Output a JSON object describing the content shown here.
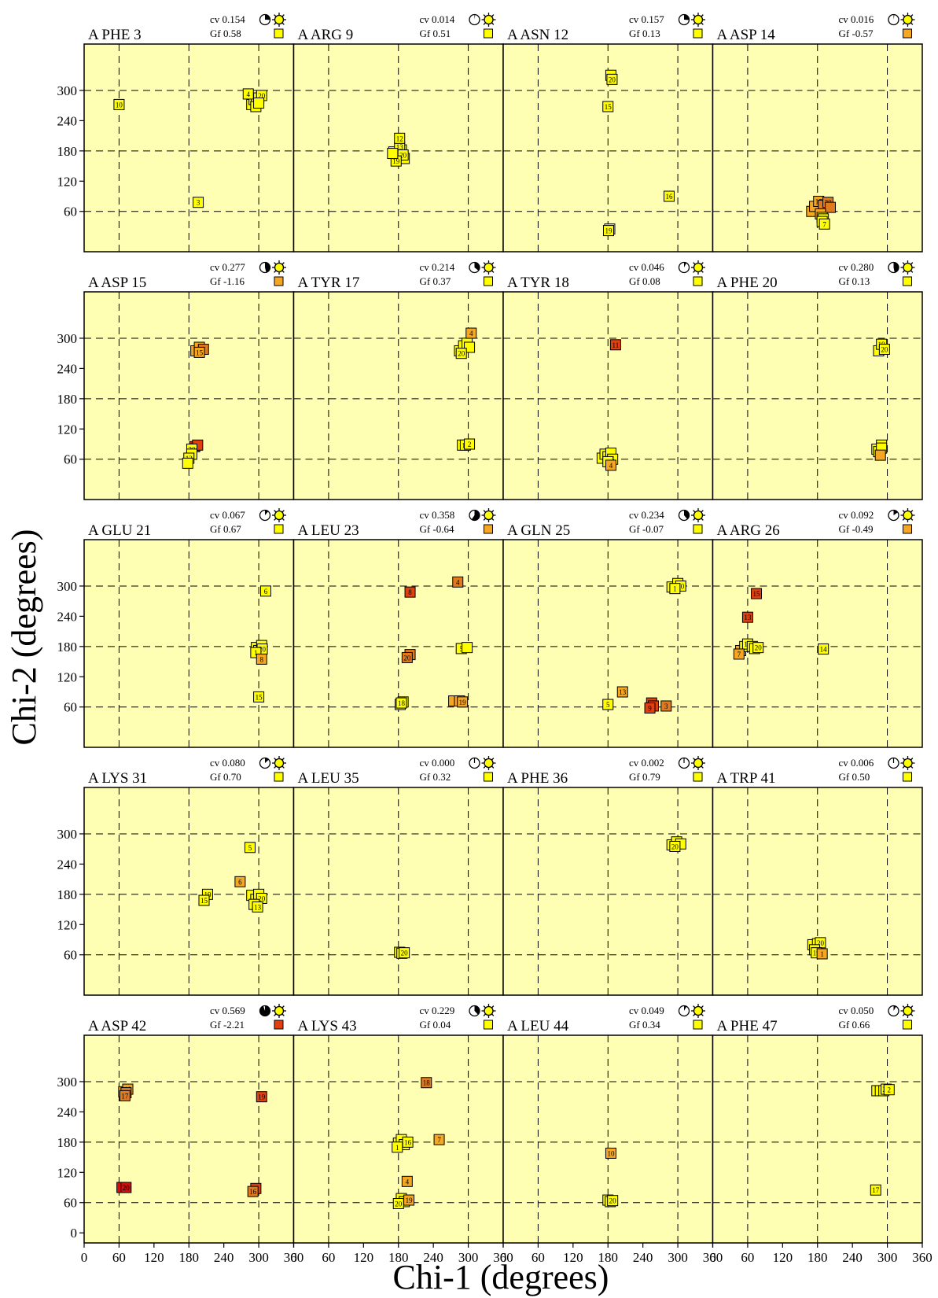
{
  "figure": {
    "ylabel": "Chi-2 (degrees)",
    "xlabel": "Chi-1 (degrees)",
    "cv_prefix": "cv",
    "gf_prefix": "Gf"
  },
  "chart_data": {
    "type": "scatter",
    "xlim": [
      0,
      360
    ],
    "ylim": [
      0,
      360
    ],
    "xticks": [
      0,
      60,
      120,
      180,
      240,
      300,
      360
    ],
    "yticks": [
      0,
      60,
      120,
      180,
      240,
      300
    ],
    "grid": true,
    "grid_lines": [
      60,
      180,
      300
    ],
    "colors": {
      "background": "#ffffb4",
      "yellow": "#ffff00",
      "orange": "#f5a623",
      "darkorange": "#e07a1f",
      "red": "#e04010",
      "darkred": "#d01010"
    },
    "panels": [
      {
        "title": "A PHE 3",
        "cv": "0.154",
        "gf": "0.58",
        "gf_color": "#ffff00",
        "pts": [
          [
            288,
            272,
            "",
            "#ffff00"
          ],
          [
            292,
            282,
            "",
            "#ffff00"
          ],
          [
            296,
            278,
            "",
            "#ffff00"
          ],
          [
            300,
            285,
            "",
            "#ffff00"
          ],
          [
            305,
            290,
            "20",
            "#ffff00"
          ],
          [
            295,
            268,
            "",
            "#ffff00"
          ],
          [
            300,
            275,
            "",
            "#ffff00"
          ],
          [
            282,
            293,
            "4",
            "#ffff00"
          ],
          [
            60,
            272,
            "10",
            "#ffff00"
          ],
          [
            196,
            78,
            "3",
            "#ffff00"
          ]
        ]
      },
      {
        "title": "A ARG 9",
        "cv": "0.014",
        "gf": "0.51",
        "gf_color": "#ffff00",
        "pts": [
          [
            172,
            178,
            "",
            "#ffff00"
          ],
          [
            178,
            170,
            "",
            "#ffff00"
          ],
          [
            185,
            182,
            "",
            "#ffff00"
          ],
          [
            190,
            165,
            "",
            "#ffff00"
          ],
          [
            182,
            188,
            "13",
            "#ffff00"
          ],
          [
            188,
            172,
            "20",
            "#ffff00"
          ],
          [
            182,
            205,
            "12",
            "#ffff00"
          ],
          [
            176,
            160,
            "19",
            "#ffff00"
          ],
          [
            170,
            175,
            "",
            "#ffff00"
          ]
        ]
      },
      {
        "title": "A ASN 12",
        "cv": "0.157",
        "gf": "0.13",
        "gf_color": "#ffff00",
        "pts": [
          [
            185,
            330,
            "",
            "#ffff00"
          ],
          [
            187,
            322,
            "20",
            "#ffff00"
          ],
          [
            180,
            268,
            "15",
            "#ffff00"
          ],
          [
            285,
            90,
            "16",
            "#ffff00"
          ],
          [
            183,
            25,
            "",
            "#ffff00"
          ],
          [
            181,
            22,
            "19",
            "#ffff00"
          ]
        ]
      },
      {
        "title": "A ASP 14",
        "cv": "0.016",
        "gf": "-0.57",
        "gf_color": "#f5a623",
        "pts": [
          [
            170,
            60,
            "",
            "#f5a623"
          ],
          [
            175,
            70,
            "",
            "#f5a623"
          ],
          [
            182,
            80,
            "17",
            "#f5a623"
          ],
          [
            190,
            72,
            "",
            "#e07a1f"
          ],
          [
            198,
            78,
            "20",
            "#e07a1f"
          ],
          [
            202,
            68,
            "",
            "#e07a1f"
          ],
          [
            185,
            55,
            "",
            "#f5a623"
          ],
          [
            188,
            48,
            "",
            "#ffff00"
          ],
          [
            190,
            45,
            "",
            "#ffff00"
          ],
          [
            188,
            40,
            "",
            "#ffff00"
          ],
          [
            192,
            35,
            "7",
            "#ffff00"
          ]
        ]
      },
      {
        "title": "A ASP 15",
        "cv": "0.277",
        "gf": "-1.16",
        "gf_color": "#f5a623",
        "pts": [
          [
            192,
            275,
            "",
            "#f5a623"
          ],
          [
            198,
            282,
            "",
            "#f5a623"
          ],
          [
            205,
            278,
            "",
            "#e07a1f"
          ],
          [
            198,
            272,
            "15",
            "#f5a623"
          ],
          [
            190,
            85,
            "",
            "#d01010"
          ],
          [
            195,
            88,
            "",
            "#e04010"
          ],
          [
            185,
            80,
            "20",
            "#ffff00"
          ],
          [
            185,
            70,
            "",
            "#ffff00"
          ],
          [
            180,
            62,
            "12",
            "#ffff00"
          ],
          [
            178,
            52,
            "",
            "#ffff00"
          ]
        ]
      },
      {
        "title": "A TYR 17",
        "cv": "0.214",
        "gf": "0.37",
        "gf_color": "#ffff00",
        "pts": [
          [
            285,
            275,
            "",
            "#ffff00"
          ],
          [
            292,
            285,
            "",
            "#ffff00"
          ],
          [
            298,
            290,
            "",
            "#ffff00"
          ],
          [
            302,
            282,
            "",
            "#ffff00"
          ],
          [
            288,
            270,
            "20",
            "#ffff00"
          ],
          [
            305,
            310,
            "4",
            "#f5a623"
          ],
          [
            290,
            88,
            "",
            "#ffff00"
          ],
          [
            295,
            88,
            "13",
            "#ffff00"
          ],
          [
            302,
            90,
            "2",
            "#ffff00"
          ]
        ]
      },
      {
        "title": "A TYR 18",
        "cv": "0.046",
        "gf": "0.08",
        "gf_color": "#ffff00",
        "pts": [
          [
            193,
            287,
            "11",
            "#e04010"
          ],
          [
            170,
            62,
            "",
            "#ffff00"
          ],
          [
            175,
            70,
            "",
            "#ffff00"
          ],
          [
            180,
            65,
            "20",
            "#ffff00"
          ],
          [
            185,
            72,
            "",
            "#ffff00"
          ],
          [
            188,
            60,
            "6",
            "#ffff00"
          ],
          [
            180,
            55,
            "",
            "#ffff00"
          ],
          [
            185,
            48,
            "4",
            "#f5a623"
          ]
        ]
      },
      {
        "title": "A PHE 20",
        "cv": "0.280",
        "gf": "0.13",
        "gf_color": "#ffff00",
        "pts": [
          [
            285,
            275,
            "",
            "#ffff00"
          ],
          [
            290,
            288,
            "19",
            "#ffff00"
          ],
          [
            295,
            278,
            "20",
            "#ffff00"
          ],
          [
            290,
            88,
            "19",
            "#ffff00"
          ],
          [
            282,
            80,
            "",
            "#ffff00"
          ],
          [
            285,
            75,
            "18",
            "#ffff00"
          ],
          [
            290,
            82,
            "",
            "#ffff00"
          ],
          [
            288,
            68,
            "",
            "#f5a623"
          ]
        ]
      },
      {
        "title": "A GLU 21",
        "cv": "0.067",
        "gf": "0.67",
        "gf_color": "#ffff00",
        "pts": [
          [
            312,
            290,
            "6",
            "#ffff00"
          ],
          [
            296,
            178,
            "",
            "#ffff00"
          ],
          [
            300,
            172,
            "",
            "#ffff00"
          ],
          [
            305,
            182,
            "",
            "#ffff00"
          ],
          [
            306,
            175,
            "20",
            "#ffff00"
          ],
          [
            295,
            168,
            "1",
            "#ffff00"
          ],
          [
            305,
            155,
            "8",
            "#f5a623"
          ],
          [
            300,
            80,
            "15",
            "#ffff00"
          ]
        ]
      },
      {
        "title": "A LEU 23",
        "cv": "0.358",
        "gf": "-0.64",
        "gf_color": "#f5a623",
        "pts": [
          [
            282,
            308,
            "4",
            "#e07a1f"
          ],
          [
            200,
            288,
            "8",
            "#e04010"
          ],
          [
            288,
            176,
            "5",
            "#ffff00"
          ],
          [
            298,
            178,
            "",
            "#ffff00"
          ],
          [
            200,
            164,
            "",
            "#e07a1f"
          ],
          [
            195,
            158,
            "20",
            "#e07a1f"
          ],
          [
            183,
            65,
            "",
            "#ffff00"
          ],
          [
            188,
            70,
            "",
            "#ffff00"
          ],
          [
            185,
            68,
            "18",
            "#ffff00"
          ],
          [
            275,
            72,
            "",
            "#f5a623"
          ],
          [
            285,
            72,
            "",
            "#f5a623"
          ],
          [
            290,
            70,
            "19",
            "#f5a623"
          ]
        ]
      },
      {
        "title": "A GLN 25",
        "cv": "0.234",
        "gf": "-0.07",
        "gf_color": "#ffff00",
        "pts": [
          [
            290,
            298,
            "",
            "#ffff00"
          ],
          [
            300,
            305,
            "",
            "#ffff00"
          ],
          [
            305,
            300,
            "20",
            "#ffff00"
          ],
          [
            295,
            295,
            "1",
            "#ffff00"
          ],
          [
            205,
            90,
            "13",
            "#f5a623"
          ],
          [
            180,
            65,
            "5",
            "#ffff00"
          ],
          [
            255,
            68,
            "",
            "#e04010"
          ],
          [
            258,
            62,
            "",
            "#e04010"
          ],
          [
            252,
            58,
            "9",
            "#e04010"
          ],
          [
            280,
            62,
            "3",
            "#e07a1f"
          ]
        ]
      },
      {
        "title": "A ARG 26",
        "cv": "0.092",
        "gf": "-0.49",
        "gf_color": "#f5a623",
        "pts": [
          [
            75,
            285,
            "15",
            "#e04010"
          ],
          [
            60,
            238,
            "13",
            "#e04010"
          ],
          [
            48,
            172,
            "",
            "#f5a623"
          ],
          [
            55,
            180,
            "",
            "#ffff00"
          ],
          [
            60,
            185,
            "19",
            "#ffff00"
          ],
          [
            68,
            180,
            "",
            "#ffff00"
          ],
          [
            72,
            176,
            "",
            "#ffff00"
          ],
          [
            78,
            178,
            "20",
            "#ffff00"
          ],
          [
            45,
            165,
            "7",
            "#f5a623"
          ],
          [
            190,
            175,
            "14",
            "#ffff00"
          ]
        ]
      },
      {
        "title": "A LYS 31",
        "cv": "0.080",
        "gf": "0.70",
        "gf_color": "#ffff00",
        "pts": [
          [
            285,
            273,
            "5",
            "#ffff00"
          ],
          [
            268,
            205,
            "6",
            "#f5a623"
          ],
          [
            212,
            180,
            "19",
            "#ffff00"
          ],
          [
            206,
            168,
            "15",
            "#ffff00"
          ],
          [
            288,
            178,
            "",
            "#ffff00"
          ],
          [
            295,
            170,
            "",
            "#ffff00"
          ],
          [
            300,
            180,
            "",
            "#ffff00"
          ],
          [
            305,
            172,
            "20",
            "#ffff00"
          ],
          [
            292,
            160,
            "",
            "#ffff00"
          ],
          [
            298,
            155,
            "13",
            "#ffff00"
          ]
        ]
      },
      {
        "title": "A LEU 35",
        "cv": "0.000",
        "gf": "0.32",
        "gf_color": "#ffff00",
        "pts": [
          [
            182,
            65,
            "",
            "#ffff00"
          ],
          [
            186,
            63,
            "",
            "#ffff00"
          ],
          [
            190,
            64,
            "20",
            "#ffff00"
          ]
        ]
      },
      {
        "title": "A PHE 36",
        "cv": "0.002",
        "gf": "0.79",
        "gf_color": "#ffff00",
        "pts": [
          [
            290,
            278,
            "",
            "#ffff00"
          ],
          [
            298,
            284,
            "",
            "#ffff00"
          ],
          [
            305,
            280,
            "",
            "#ffff00"
          ],
          [
            295,
            275,
            "20",
            "#ffff00"
          ]
        ]
      },
      {
        "title": "A TRP 41",
        "cv": "0.006",
        "gf": "0.50",
        "gf_color": "#ffff00",
        "pts": [
          [
            172,
            80,
            "",
            "#ffff00"
          ],
          [
            180,
            82,
            "",
            "#ffff00"
          ],
          [
            185,
            84,
            "20",
            "#ffff00"
          ],
          [
            175,
            70,
            "",
            "#ffff00"
          ],
          [
            178,
            64,
            "19",
            "#ffff00"
          ],
          [
            188,
            62,
            "1",
            "#f5a623"
          ]
        ]
      },
      {
        "title": "A ASP 42",
        "cv": "0.569",
        "gf": "-2.21",
        "gf_color": "#e04010",
        "pts": [
          [
            68,
            280,
            "",
            "#f5a623"
          ],
          [
            75,
            285,
            "18",
            "#f5a623"
          ],
          [
            72,
            278,
            "",
            "#e07a1f"
          ],
          [
            70,
            272,
            "17",
            "#e07a1f"
          ],
          [
            305,
            270,
            "19",
            "#e04010"
          ],
          [
            65,
            90,
            "",
            "#d01010"
          ],
          [
            72,
            90,
            "20",
            "#d01010"
          ],
          [
            295,
            88,
            "",
            "#e04010"
          ],
          [
            290,
            82,
            "16",
            "#e07a1f"
          ]
        ]
      },
      {
        "title": "A LYS 43",
        "cv": "0.229",
        "gf": "0.04",
        "gf_color": "#ffff00",
        "pts": [
          [
            228,
            298,
            "18",
            "#e07a1f"
          ],
          [
            250,
            185,
            "7",
            "#f5a623"
          ],
          [
            180,
            178,
            "",
            "#ffff00"
          ],
          [
            185,
            185,
            "",
            "#ffff00"
          ],
          [
            190,
            175,
            "",
            "#ffff00"
          ],
          [
            196,
            180,
            "16",
            "#ffff00"
          ],
          [
            178,
            170,
            "1",
            "#ffff00"
          ],
          [
            195,
            102,
            "4",
            "#f5a623"
          ],
          [
            185,
            68,
            "",
            "#ffff00"
          ],
          [
            190,
            62,
            "",
            "#ffff00"
          ],
          [
            198,
            65,
            "19",
            "#f5a623"
          ],
          [
            180,
            58,
            "20",
            "#ffff00"
          ]
        ]
      },
      {
        "title": "A LEU 44",
        "cv": "0.049",
        "gf": "0.34",
        "gf_color": "#ffff00",
        "pts": [
          [
            185,
            158,
            "10",
            "#f5a623"
          ],
          [
            180,
            65,
            "",
            "#ffff00"
          ],
          [
            184,
            62,
            "",
            "#ffff00"
          ],
          [
            188,
            64,
            "20",
            "#ffff00"
          ]
        ]
      },
      {
        "title": "A PHE 47",
        "cv": "0.050",
        "gf": "0.66",
        "gf_color": "#ffff00",
        "pts": [
          [
            282,
            282,
            "",
            "#ffff00"
          ],
          [
            288,
            282,
            "",
            "#ffff00"
          ],
          [
            294,
            282,
            "",
            "#ffff00"
          ],
          [
            298,
            285,
            "20",
            "#ffff00"
          ],
          [
            303,
            284,
            "2",
            "#ffff00"
          ],
          [
            280,
            85,
            "17",
            "#ffff00"
          ]
        ]
      }
    ]
  }
}
